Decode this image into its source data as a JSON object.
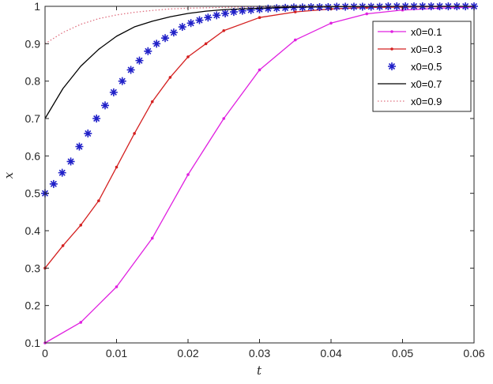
{
  "chart_data": {
    "type": "line",
    "title": "",
    "xlabel": "t",
    "ylabel": "x",
    "xlim": [
      0,
      0.06
    ],
    "ylim": [
      0.1,
      1
    ],
    "xticks": [
      "0",
      "0.01",
      "0.02",
      "0.03",
      "0.04",
      "0.05",
      "0.06"
    ],
    "yticks": [
      "0.1",
      "0.2",
      "0.3",
      "0.4",
      "0.5",
      "0.6",
      "0.7",
      "0.8",
      "0.9",
      "1"
    ],
    "grid": false,
    "legend_position": "top-right",
    "series": [
      {
        "name": "x0=0.1",
        "color": "#e020e0",
        "style": "solid-dots",
        "x": [
          0,
          0.005,
          0.01,
          0.015,
          0.02,
          0.025,
          0.03,
          0.035,
          0.04,
          0.045,
          0.05,
          0.055,
          0.06
        ],
        "values": [
          0.1,
          0.155,
          0.25,
          0.38,
          0.55,
          0.7,
          0.83,
          0.91,
          0.955,
          0.98,
          0.99,
          0.995,
          0.998
        ]
      },
      {
        "name": "x0=0.3",
        "color": "#d42020",
        "style": "solid-dots",
        "x": [
          0,
          0.0025,
          0.005,
          0.0075,
          0.01,
          0.0125,
          0.015,
          0.0175,
          0.02,
          0.0225,
          0.025,
          0.03,
          0.035,
          0.04,
          0.045,
          0.05,
          0.055,
          0.06
        ],
        "values": [
          0.3,
          0.36,
          0.415,
          0.48,
          0.57,
          0.66,
          0.745,
          0.81,
          0.865,
          0.9,
          0.935,
          0.97,
          0.985,
          0.993,
          0.997,
          0.998,
          0.999,
          1.0
        ]
      },
      {
        "name": "x0=0.5",
        "color": "#2020c8",
        "style": "asterisk",
        "x": [
          0,
          0.0012,
          0.0024,
          0.0036,
          0.0048,
          0.006,
          0.0072,
          0.0084,
          0.0096,
          0.0108,
          0.012,
          0.0132,
          0.0144,
          0.0156,
          0.0168,
          0.018,
          0.0192,
          0.0204,
          0.0216,
          0.0228,
          0.024,
          0.0252,
          0.0264,
          0.0276,
          0.0288,
          0.03,
          0.0312,
          0.0324,
          0.0336,
          0.0348,
          0.036,
          0.0372,
          0.0384,
          0.0396,
          0.0408,
          0.042,
          0.0432,
          0.0444,
          0.0456,
          0.0468,
          0.048,
          0.0492,
          0.0504,
          0.0516,
          0.0528,
          0.054,
          0.0552,
          0.0564,
          0.0576,
          0.0588,
          0.06
        ],
        "values": [
          0.5,
          0.525,
          0.555,
          0.585,
          0.625,
          0.66,
          0.7,
          0.735,
          0.77,
          0.8,
          0.83,
          0.855,
          0.88,
          0.9,
          0.915,
          0.93,
          0.945,
          0.955,
          0.963,
          0.97,
          0.976,
          0.981,
          0.985,
          0.988,
          0.99,
          0.992,
          0.994,
          0.995,
          0.996,
          0.997,
          0.997,
          0.998,
          0.998,
          0.998,
          0.999,
          0.999,
          0.999,
          0.999,
          0.999,
          0.999,
          1.0,
          1.0,
          1.0,
          1.0,
          1.0,
          1.0,
          1.0,
          1.0,
          1.0,
          1.0,
          1.0
        ]
      },
      {
        "name": "x0=0.7",
        "color": "#000000",
        "style": "solid",
        "x": [
          0,
          0.0025,
          0.005,
          0.0075,
          0.01,
          0.0125,
          0.015,
          0.0175,
          0.02,
          0.0225,
          0.025,
          0.03,
          0.035,
          0.04,
          0.05,
          0.06
        ],
        "values": [
          0.7,
          0.78,
          0.84,
          0.885,
          0.92,
          0.945,
          0.96,
          0.972,
          0.981,
          0.987,
          0.991,
          0.995,
          0.998,
          0.999,
          1.0,
          1.0
        ]
      },
      {
        "name": "x0=0.9",
        "color": "#e07080",
        "style": "dotted",
        "x": [
          0,
          0.0025,
          0.005,
          0.0075,
          0.01,
          0.0125,
          0.015,
          0.0175,
          0.02,
          0.025,
          0.03,
          0.04,
          0.05,
          0.06
        ],
        "values": [
          0.9,
          0.93,
          0.952,
          0.967,
          0.977,
          0.984,
          0.989,
          0.993,
          0.995,
          0.997,
          0.999,
          1.0,
          1.0,
          1.0
        ]
      }
    ]
  }
}
